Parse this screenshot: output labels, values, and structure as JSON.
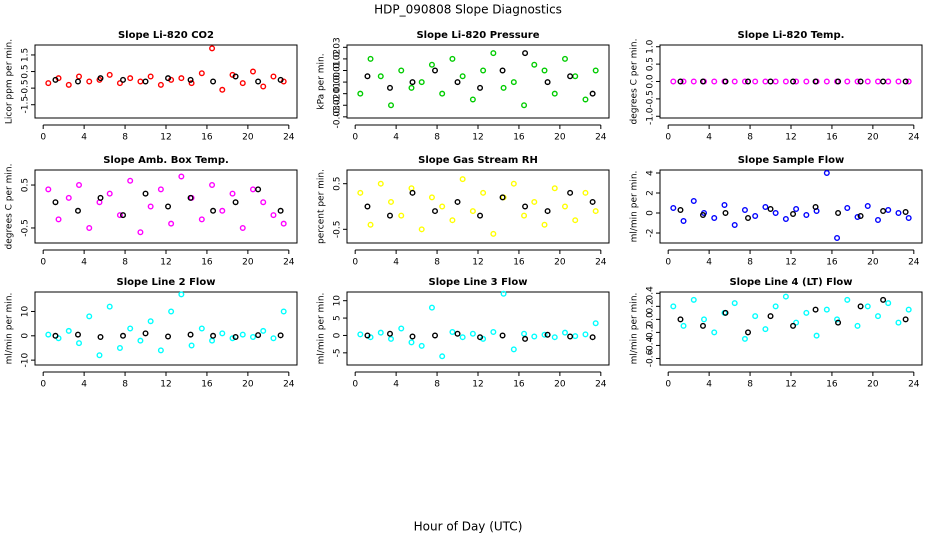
{
  "title": "HDP_090808  Slope Diagnostics",
  "x_label": "Hour of Day (UTC)",
  "chart_data": [
    {
      "type": "scatter",
      "title": "Slope Li-820 CO2",
      "y_label": "Licor ppm per min.",
      "xlim": [
        -0.8,
        24.8
      ],
      "xticks": [
        0,
        4,
        8,
        12,
        16,
        20,
        24
      ],
      "ylim": [
        -2.3,
        2.1
      ],
      "yticks": [
        -1.5,
        -0.5,
        0.5,
        1.5
      ],
      "series": [
        {
          "color": "#ff0000",
          "x": [
            0.5,
            1.5,
            2.5,
            3.5,
            4.5,
            5.5,
            6.5,
            7.5,
            8.5,
            9.5,
            10.5,
            11.5,
            12.5,
            13.5,
            14.5,
            15.5,
            16.5,
            17.5,
            18.5,
            19.5,
            20.5,
            21.5,
            22.5,
            23.5
          ],
          "values": [
            -0.2,
            0.1,
            -0.3,
            0.2,
            -0.1,
            0.0,
            0.3,
            -0.2,
            0.1,
            -0.1,
            0.2,
            -0.3,
            0.0,
            0.1,
            -0.2,
            0.4,
            1.9,
            -0.6,
            0.3,
            -0.2,
            0.5,
            -0.4,
            0.2,
            -0.1
          ]
        },
        {
          "color": "#000000",
          "x": [
            1.2,
            3.4,
            5.6,
            7.8,
            10,
            12.2,
            14.4,
            16.6,
            18.8,
            21,
            23.2
          ],
          "values": [
            0.0,
            -0.1,
            0.1,
            0.0,
            -0.1,
            0.1,
            0.0,
            -0.1,
            0.2,
            -0.1,
            0.0
          ]
        }
      ]
    },
    {
      "type": "scatter",
      "title": "Slope Li-820 Pressure",
      "y_label": "kPa per min.",
      "xlim": [
        -0.8,
        24.8
      ],
      "xticks": [
        0,
        4,
        8,
        12,
        16,
        20,
        24
      ],
      "ylim": [
        -0.031,
        0.032
      ],
      "yticks": [
        -0.03,
        -0.02,
        -0.01,
        {
          "value": 0,
          "label": "0.00"
        },
        0.01,
        0.02,
        0.03
      ],
      "series": [
        {
          "color": "#00cc00",
          "x": [
            0.5,
            1.5,
            2.5,
            3.5,
            4.5,
            5.5,
            6.5,
            7.5,
            8.5,
            9.5,
            10.5,
            11.5,
            12.5,
            13.5,
            14.5,
            15.5,
            16.5,
            17.5,
            18.5,
            19.5,
            20.5,
            21.5,
            22.5,
            23.5
          ],
          "values": [
            -0.01,
            0.02,
            0.005,
            -0.02,
            0.01,
            -0.005,
            0.0,
            0.015,
            -0.01,
            0.02,
            0.005,
            -0.015,
            0.01,
            0.025,
            -0.005,
            0.0,
            -0.02,
            0.015,
            0.01,
            -0.01,
            0.02,
            0.005,
            -0.015,
            0.01
          ]
        },
        {
          "color": "#000000",
          "x": [
            1.2,
            3.4,
            5.6,
            7.8,
            10,
            12.2,
            14.4,
            16.6,
            18.8,
            21,
            23.2
          ],
          "values": [
            0.005,
            -0.005,
            0.0,
            0.01,
            0.0,
            -0.005,
            0.01,
            0.025,
            0.0,
            0.005,
            -0.01
          ]
        }
      ]
    },
    {
      "type": "scatter",
      "title": "Slope Li-820 Temp.",
      "y_label": "degrees C per min.",
      "xlim": [
        -0.8,
        24.8
      ],
      "xticks": [
        0,
        4,
        8,
        12,
        16,
        20,
        24
      ],
      "ylim": [
        -1.05,
        1.05
      ],
      "yticks": [
        {
          "value": -1,
          "label": "-1.0"
        },
        -0.5,
        {
          "value": 0,
          "label": "0.0"
        },
        0.5,
        {
          "value": 1,
          "label": "1.0"
        }
      ],
      "series": [
        {
          "color": "#ff00ff",
          "x": [
            0.5,
            1.5,
            2.5,
            3.5,
            4.5,
            5.5,
            6.5,
            7.5,
            8.5,
            9.5,
            10.5,
            11.5,
            12.5,
            13.5,
            14.5,
            15.5,
            16.5,
            17.5,
            18.5,
            19.5,
            20.5,
            21.5,
            22.5,
            23.5
          ],
          "values": [
            0,
            0,
            0,
            0,
            0,
            0,
            0,
            0,
            0,
            0,
            0,
            0,
            0,
            0,
            0,
            0,
            0,
            0,
            0,
            0,
            0,
            0,
            0,
            0
          ]
        },
        {
          "color": "#000000",
          "x": [
            1.2,
            3.4,
            5.6,
            7.8,
            10,
            12.2,
            14.4,
            16.6,
            18.8,
            21,
            23.2
          ],
          "values": [
            0,
            0,
            0,
            0,
            0,
            0,
            0,
            0,
            0,
            0,
            0
          ]
        }
      ]
    },
    {
      "type": "scatter",
      "title": "Slope Amb. Box Temp.",
      "y_label": "degrees C per min.",
      "xlim": [
        -0.8,
        24.8
      ],
      "xticks": [
        0,
        4,
        8,
        12,
        16,
        20,
        24
      ],
      "ylim": [
        -0.85,
        0.85
      ],
      "yticks": [
        -0.5,
        0.5
      ],
      "series": [
        {
          "color": "#ff00ff",
          "x": [
            0.5,
            1.5,
            2.5,
            3.5,
            4.5,
            5.5,
            6.5,
            7.5,
            8.5,
            9.5,
            10.5,
            11.5,
            12.5,
            13.5,
            14.5,
            15.5,
            16.5,
            17.5,
            18.5,
            19.5,
            20.5,
            21.5,
            22.5,
            23.5
          ],
          "values": [
            0.4,
            -0.3,
            0.2,
            0.5,
            -0.5,
            0.1,
            0.3,
            -0.2,
            0.6,
            -0.6,
            0.0,
            0.4,
            -0.4,
            0.7,
            0.2,
            -0.3,
            0.5,
            -0.1,
            0.3,
            -0.5,
            0.4,
            0.1,
            -0.2,
            -0.4
          ]
        },
        {
          "color": "#000000",
          "x": [
            1.2,
            3.4,
            5.6,
            7.8,
            10,
            12.2,
            14.4,
            16.6,
            18.8,
            21,
            23.2
          ],
          "values": [
            0.1,
            -0.1,
            0.2,
            -0.2,
            0.3,
            0.0,
            0.2,
            -0.1,
            0.1,
            0.4,
            -0.1
          ]
        }
      ]
    },
    {
      "type": "scatter",
      "title": "Slope Gas Stream RH",
      "y_label": "percent per min.",
      "xlim": [
        -0.8,
        24.8
      ],
      "xticks": [
        0,
        4,
        8,
        12,
        16,
        20,
        24
      ],
      "ylim": [
        -0.8,
        0.8
      ],
      "yticks": [
        -0.5,
        0.5
      ],
      "series": [
        {
          "color": "#ffff00",
          "x": [
            0.5,
            1.5,
            2.5,
            3.5,
            4.5,
            5.5,
            6.5,
            7.5,
            8.5,
            9.5,
            10.5,
            11.5,
            12.5,
            13.5,
            14.5,
            15.5,
            16.5,
            17.5,
            18.5,
            19.5,
            20.5,
            21.5,
            22.5,
            23.5
          ],
          "values": [
            0.3,
            -0.4,
            0.5,
            0.1,
            -0.2,
            0.4,
            -0.5,
            0.2,
            0.0,
            -0.3,
            0.6,
            -0.1,
            0.3,
            -0.6,
            0.2,
            0.5,
            -0.2,
            0.1,
            -0.4,
            0.4,
            0.0,
            -0.3,
            0.3,
            -0.1
          ]
        },
        {
          "color": "#000000",
          "x": [
            1.2,
            3.4,
            5.6,
            7.8,
            10,
            12.2,
            14.4,
            16.6,
            18.8,
            21,
            23.2
          ],
          "values": [
            0.0,
            -0.2,
            0.3,
            -0.1,
            0.1,
            -0.2,
            0.2,
            0.0,
            -0.1,
            0.3,
            0.1
          ]
        }
      ]
    },
    {
      "type": "scatter",
      "title": "Slope Sample Flow",
      "y_label": "ml/min per min.",
      "xlim": [
        -0.8,
        24.8
      ],
      "xticks": [
        0,
        4,
        8,
        12,
        16,
        20,
        24
      ],
      "ylim": [
        -3,
        4.3
      ],
      "yticks": [
        -2,
        0,
        2,
        4
      ],
      "series": [
        {
          "color": "#0000ff",
          "x": [
            0.5,
            1.5,
            2.5,
            3.5,
            4.5,
            5.5,
            6.5,
            7.5,
            8.5,
            9.5,
            10.5,
            11.5,
            12.5,
            13.5,
            14.5,
            15.5,
            16.5,
            17.5,
            18.5,
            19.5,
            20.5,
            21.5,
            22.5,
            23.5
          ],
          "values": [
            0.5,
            -0.8,
            1.2,
            0.0,
            -0.5,
            0.8,
            -1.2,
            0.3,
            -0.3,
            0.6,
            0.0,
            -0.6,
            0.4,
            -0.2,
            0.2,
            4.0,
            -2.5,
            0.5,
            -0.4,
            0.7,
            -0.7,
            0.3,
            0.0,
            -0.5
          ]
        },
        {
          "color": "#000000",
          "x": [
            1.2,
            3.4,
            5.6,
            7.8,
            10,
            12.2,
            14.4,
            16.6,
            18.8,
            21,
            23.2
          ],
          "values": [
            0.3,
            -0.2,
            0.0,
            -0.5,
            0.4,
            -0.1,
            0.6,
            0.0,
            -0.3,
            0.2,
            0.1
          ]
        }
      ]
    },
    {
      "type": "scatter",
      "title": "Slope Line 2 Flow",
      "y_label": "ml/min per min.",
      "xlim": [
        -0.8,
        24.8
      ],
      "xticks": [
        0,
        4,
        8,
        12,
        16,
        20,
        24
      ],
      "ylim": [
        -12,
        18
      ],
      "yticks": [
        -10,
        0,
        10
      ],
      "series": [
        {
          "color": "#00ffff",
          "x": [
            0.5,
            1.5,
            2.5,
            3.5,
            4.5,
            5.5,
            6.5,
            7.5,
            8.5,
            9.5,
            10.5,
            11.5,
            12.5,
            13.5,
            14.5,
            15.5,
            16.5,
            17.5,
            18.5,
            19.5,
            20.5,
            21.5,
            22.5,
            23.5
          ],
          "values": [
            0.5,
            -1,
            2,
            -3,
            8,
            -8,
            12,
            -5,
            3,
            -2,
            6,
            -6,
            10,
            17,
            -4,
            3,
            -2,
            1,
            -1,
            0.5,
            -0.5,
            2,
            -1,
            10
          ]
        },
        {
          "color": "#000000",
          "x": [
            1.2,
            3.4,
            5.6,
            7.8,
            10,
            12.2,
            14.4,
            16.6,
            18.8,
            21,
            23.2
          ],
          "values": [
            0,
            0.5,
            -0.5,
            0,
            1,
            -0.3,
            0.5,
            0,
            -0.5,
            0.3,
            0.2
          ]
        }
      ]
    },
    {
      "type": "scatter",
      "title": "Slope Line 3 Flow",
      "y_label": "ml/min per min.",
      "xlim": [
        -0.8,
        24.8
      ],
      "xticks": [
        0,
        4,
        8,
        12,
        16,
        20,
        24
      ],
      "ylim": [
        -8.5,
        12.5
      ],
      "yticks": [
        -5,
        0,
        5,
        10
      ],
      "series": [
        {
          "color": "#00ffff",
          "x": [
            0.5,
            1.5,
            2.5,
            3.5,
            4.5,
            5.5,
            6.5,
            7.5,
            8.5,
            9.5,
            10.5,
            11.5,
            12.5,
            13.5,
            14.5,
            15.5,
            16.5,
            17.5,
            18.5,
            19.5,
            20.5,
            21.5,
            22.5,
            23.5
          ],
          "values": [
            0.3,
            -0.5,
            0.8,
            -1,
            2,
            -2,
            -3,
            8,
            -6,
            1,
            -0.5,
            0.5,
            -1,
            1,
            12,
            -4,
            0.5,
            -0.3,
            0.2,
            -0.5,
            0.8,
            -0.2,
            0.3,
            3.5
          ]
        },
        {
          "color": "#000000",
          "x": [
            1.2,
            3.4,
            5.6,
            7.8,
            10,
            12.2,
            14.4,
            16.6,
            18.8,
            21,
            23.2
          ],
          "values": [
            0,
            0.5,
            -0.3,
            0,
            0.5,
            -0.5,
            0,
            -1,
            0.2,
            -0.3,
            -0.5
          ]
        }
      ]
    },
    {
      "type": "scatter",
      "title": "Slope Line 4 (LT) Flow",
      "y_label": "ml/min per min.",
      "xlim": [
        -0.8,
        24.8
      ],
      "xticks": [
        0,
        4,
        8,
        12,
        16,
        20,
        24
      ],
      "ylim": [
        -0.7,
        0.42
      ],
      "yticks": [
        -0.6,
        -0.4,
        -0.2,
        {
          "value": 0,
          "label": "0.0"
        },
        0.2,
        0.4
      ],
      "series": [
        {
          "color": "#00ffff",
          "x": [
            0.5,
            1.5,
            2.5,
            3.5,
            4.5,
            5.5,
            6.5,
            7.5,
            8.5,
            9.5,
            10.5,
            11.5,
            12.5,
            13.5,
            14.5,
            15.5,
            16.5,
            17.5,
            18.5,
            19.5,
            20.5,
            21.5,
            22.5,
            23.5
          ],
          "values": [
            0.2,
            -0.1,
            0.3,
            0.0,
            -0.2,
            0.1,
            0.25,
            -0.3,
            0.05,
            -0.15,
            0.2,
            0.35,
            -0.05,
            0.1,
            -0.25,
            0.15,
            0.0,
            0.3,
            -0.1,
            0.2,
            0.05,
            0.25,
            -0.05,
            0.15
          ]
        },
        {
          "color": "#000000",
          "x": [
            1.2,
            3.4,
            5.6,
            7.8,
            10,
            12.2,
            14.4,
            16.6,
            18.8,
            21,
            23.2
          ],
          "values": [
            0.0,
            -0.1,
            0.1,
            -0.2,
            0.05,
            -0.1,
            0.15,
            -0.05,
            0.2,
            0.3,
            0.0
          ]
        }
      ]
    }
  ]
}
